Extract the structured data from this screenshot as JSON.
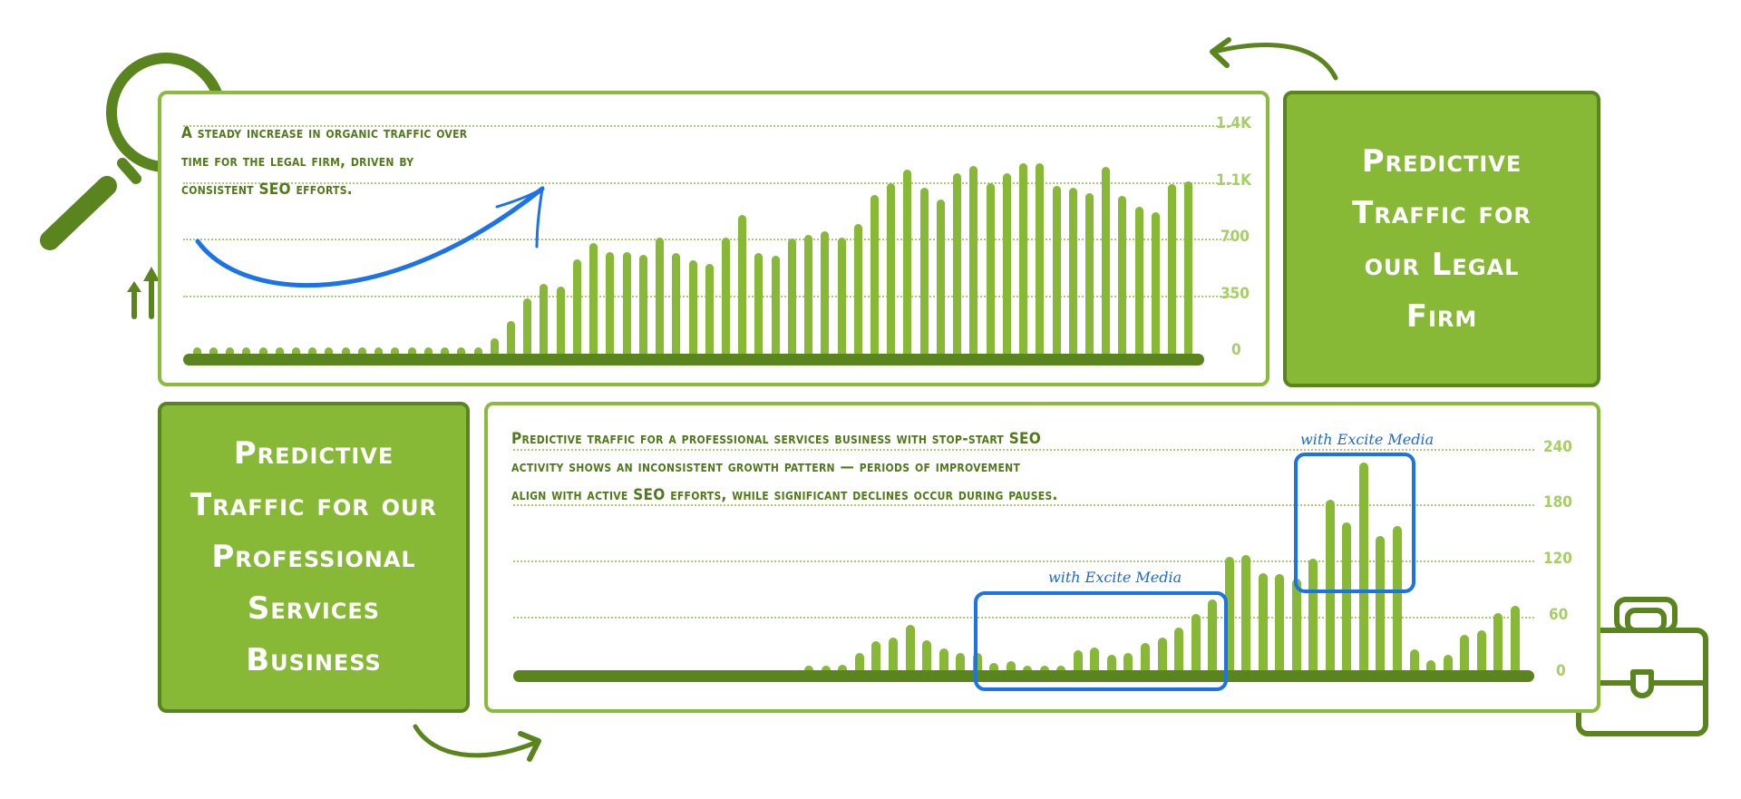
{
  "top_panel": {
    "caption_lines": [
      "A steady increase in organic traffic over",
      "time for the legal firm, driven by",
      "consistent SEO efforts."
    ],
    "title_lines": [
      "Predictive",
      "Traffic for",
      "our Legal",
      "Firm"
    ],
    "y_ticks": [
      "1.4K",
      "1.1K",
      "700",
      "350",
      "0"
    ]
  },
  "bottom_panel": {
    "caption_lines": [
      "Predictive traffic for a professional services business with stop-start SEO",
      "activity shows an inconsistent growth pattern — periods of improvement",
      "align with active SEO efforts, while significant declines occur during pauses."
    ],
    "title_lines": [
      "Predictive",
      "Traffic for our",
      "Professional",
      "Services",
      "Business"
    ],
    "y_ticks": [
      "240",
      "180",
      "120",
      "60",
      "0"
    ],
    "annotations": [
      {
        "label": "with Excite Media"
      },
      {
        "label": "with Excite Media"
      }
    ]
  },
  "colors": {
    "bar": "#87b937",
    "baseline": "#5a841d",
    "title_box": "#87b937",
    "panel_border": "#8bbb3a",
    "highlight": "#1a73e8",
    "caption": "#507a1a",
    "tick": "#a6cf63"
  },
  "chart_data": [
    {
      "type": "bar",
      "title": "Predictive Traffic for our Legal Firm",
      "subtitle": "A steady increase in organic traffic over time for the legal firm, driven by consistent SEO efforts.",
      "xlabel": "",
      "ylabel": "",
      "ylim": [
        0,
        1400
      ],
      "y_ticks": [
        0,
        350,
        700,
        1050,
        1400
      ],
      "y_tick_labels": [
        "0",
        "350",
        "700",
        "1.1K",
        "1.4K"
      ],
      "grid": true,
      "legend": null,
      "values": [
        60,
        60,
        60,
        60,
        60,
        60,
        60,
        60,
        60,
        60,
        60,
        60,
        60,
        60,
        60,
        60,
        60,
        60,
        117,
        226,
        364,
        455,
        438,
        606,
        703,
        652,
        652,
        632,
        739,
        642,
        597,
        578,
        739,
        881,
        642,
        628,
        735,
        758,
        778,
        739,
        826,
        1005,
        1077,
        1158,
        1048,
        976,
        1135,
        1180,
        1077,
        1135,
        1200,
        1200,
        1057,
        1048,
        1013,
        1174,
        995,
        931,
        898,
        1067,
        1086
      ],
      "annotations": [
        "hand-drawn upward curved arrow"
      ]
    },
    {
      "type": "bar",
      "title": "Predictive Traffic for our Professional Services Business",
      "subtitle": "Predictive traffic for a professional services business with stop-start SEO activity shows an inconsistent growth pattern — periods of improvement align with active SEO efforts, while significant declines occur during pauses.",
      "xlabel": "",
      "ylabel": "",
      "ylim": [
        0,
        240
      ],
      "y_ticks": [
        0,
        60,
        120,
        180,
        240
      ],
      "grid": true,
      "legend": null,
      "leading_empty_slots": 17,
      "values": [
        2,
        4,
        9,
        21,
        34,
        38,
        52,
        35,
        26,
        21,
        21,
        11,
        13,
        8,
        5,
        8,
        24,
        27,
        20,
        21,
        32,
        38,
        49,
        63,
        79,
        125,
        127,
        107,
        106,
        101,
        123,
        186,
        162,
        226,
        147,
        158,
        25,
        14,
        20,
        41,
        46,
        64,
        72
      ],
      "annotations": [
        {
          "label": "with Excite Media",
          "bar_range": [
            9,
            24
          ]
        },
        {
          "label": "with Excite Media",
          "bar_range": [
            29,
            35
          ]
        }
      ]
    }
  ]
}
